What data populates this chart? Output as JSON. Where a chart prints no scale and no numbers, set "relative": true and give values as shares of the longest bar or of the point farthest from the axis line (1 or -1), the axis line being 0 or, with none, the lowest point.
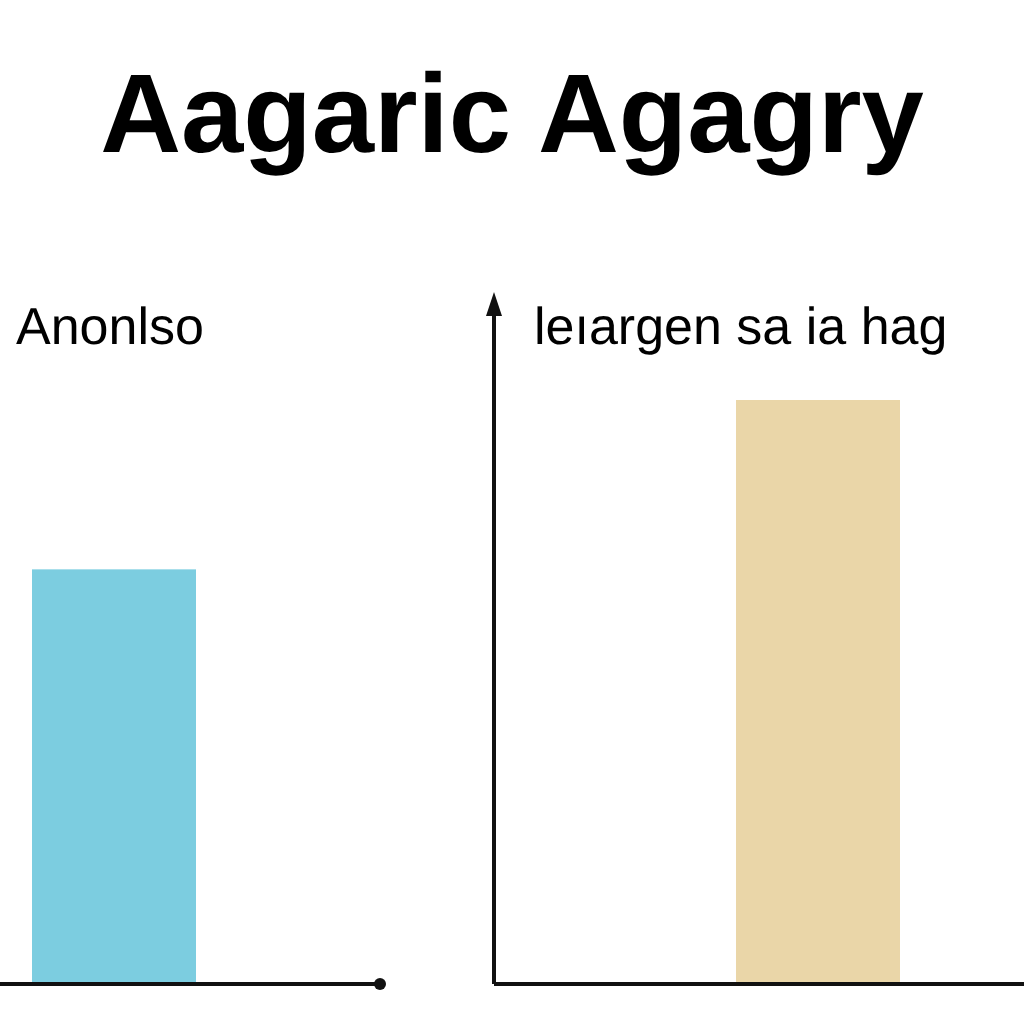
{
  "chart_data": {
    "type": "bar",
    "title": "Aagaric Agagry",
    "annotations": [
      "Anonlso",
      "leıargen sa ia hag"
    ],
    "categories": [
      null,
      null
    ],
    "values": [
      0.71,
      1
    ],
    "colors": [
      "#7ccde0",
      "#ead6a8"
    ],
    "relative": true
  }
}
